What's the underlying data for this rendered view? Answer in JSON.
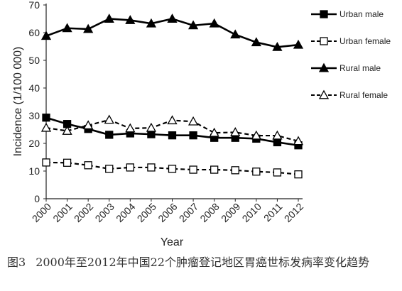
{
  "chart_data": {
    "type": "line",
    "title": "",
    "xlabel": "Year",
    "ylabel": "Incidence (1/100 000)",
    "x": [
      "2000",
      "2001",
      "2002",
      "2003",
      "2004",
      "2005",
      "2006",
      "2007",
      "2008",
      "2009",
      "2010",
      "2011",
      "2012"
    ],
    "ylim": [
      0,
      70
    ],
    "yticks": [
      "0",
      "10",
      "20",
      "30",
      "40",
      "50",
      "60",
      "70"
    ],
    "grid": false,
    "legend_position": "right",
    "series": [
      {
        "name": "Urban male",
        "marker": "square-filled",
        "line": "solid",
        "values": [
          29.3,
          27.0,
          25.2,
          23.1,
          23.6,
          23.3,
          22.9,
          22.9,
          22.0,
          22.0,
          21.7,
          20.4,
          19.3
        ]
      },
      {
        "name": "Urban female",
        "marker": "square-open",
        "line": "dashed",
        "values": [
          13.1,
          13.0,
          12.1,
          10.8,
          11.3,
          11.3,
          10.8,
          10.5,
          10.5,
          10.3,
          9.8,
          9.5,
          8.8
        ]
      },
      {
        "name": "Rural male",
        "marker": "triangle-filled",
        "line": "solid",
        "values": [
          58.8,
          61.6,
          61.3,
          65.0,
          64.5,
          63.3,
          65.0,
          62.6,
          63.3,
          59.3,
          56.5,
          54.8,
          55.6
        ]
      },
      {
        "name": "Rural female",
        "marker": "triangle-open",
        "line": "dashed",
        "values": [
          25.6,
          24.5,
          26.5,
          28.5,
          25.4,
          25.6,
          28.3,
          27.9,
          23.8,
          24.0,
          22.8,
          22.8,
          20.8
        ]
      }
    ]
  },
  "caption": {
    "figure_number": "图3",
    "text": "2000年至2012年中国22个肿瘤登记地区胃癌世标发病率变化趋势"
  }
}
